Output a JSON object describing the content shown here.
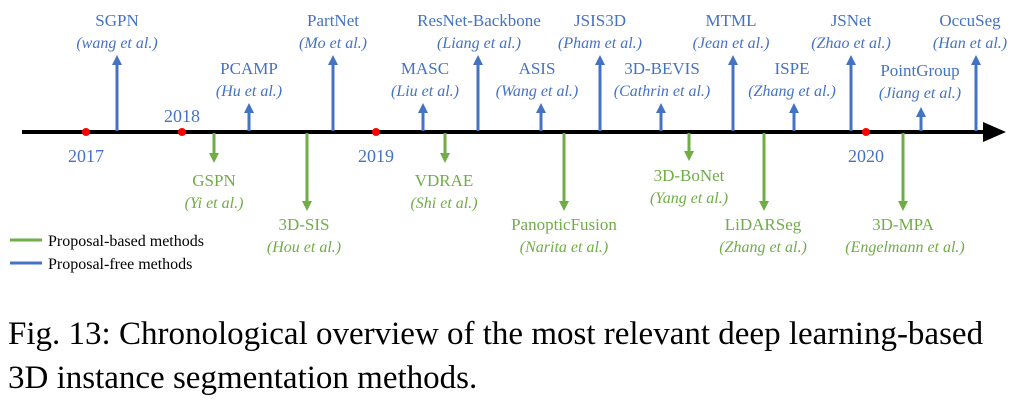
{
  "timeline": {
    "years": [
      "2017",
      "2018",
      "2019",
      "2020"
    ],
    "methods": [
      {
        "name": "SGPN",
        "authors": "(wang et al.)",
        "type": "free"
      },
      {
        "name": "PCAMP",
        "authors": "(Hu et al.)",
        "type": "free"
      },
      {
        "name": "PartNet",
        "authors": "(Mo et al.)",
        "type": "free"
      },
      {
        "name": "MASC",
        "authors": "(Liu et al.)",
        "type": "free"
      },
      {
        "name": "ResNet-Backbone",
        "authors": "(Liang et al.)",
        "type": "free"
      },
      {
        "name": "ASIS",
        "authors": "(Wang et al.)",
        "type": "free"
      },
      {
        "name": "JSIS3D",
        "authors": "(Pham et al.)",
        "type": "free"
      },
      {
        "name": "3D-BEVIS",
        "authors": "(Cathrin et al.)",
        "type": "free"
      },
      {
        "name": "MTML",
        "authors": "(Jean et al.)",
        "type": "free"
      },
      {
        "name": "ISPE",
        "authors": "(Zhang et al.)",
        "type": "free"
      },
      {
        "name": "JSNet",
        "authors": "(Zhao et al.)",
        "type": "free"
      },
      {
        "name": "PointGroup",
        "authors": "(Jiang et al.)",
        "type": "free"
      },
      {
        "name": "OccuSeg",
        "authors": "(Han et al.)",
        "type": "free"
      },
      {
        "name": "GSPN",
        "authors": "(Yi et al.)",
        "type": "proposal"
      },
      {
        "name": "3D-SIS",
        "authors": "(Hou et al.)",
        "type": "proposal"
      },
      {
        "name": "VDRAE",
        "authors": "(Shi et al.)",
        "type": "proposal"
      },
      {
        "name": "PanopticFusion",
        "authors": "(Narita et al.)",
        "type": "proposal"
      },
      {
        "name": "3D-BoNet",
        "authors": "(Yang et al.)",
        "type": "proposal"
      },
      {
        "name": "LiDARSeg",
        "authors": "(Zhang et al.)",
        "type": "proposal"
      },
      {
        "name": "3D-MPA",
        "authors": "(Engelmann et al.)",
        "type": "proposal"
      }
    ]
  },
  "legend": {
    "proposal_based": "Proposal-based methods",
    "proposal_free": "Proposal-free methods"
  },
  "colors": {
    "proposal_free": "#4472C4",
    "proposal_based": "#70AD47",
    "year_marker": "#FF0000",
    "axis": "#000000"
  },
  "caption": "Fig. 13: Chronological overview of the most relevant deep learning-based 3D instance segmentation methods."
}
